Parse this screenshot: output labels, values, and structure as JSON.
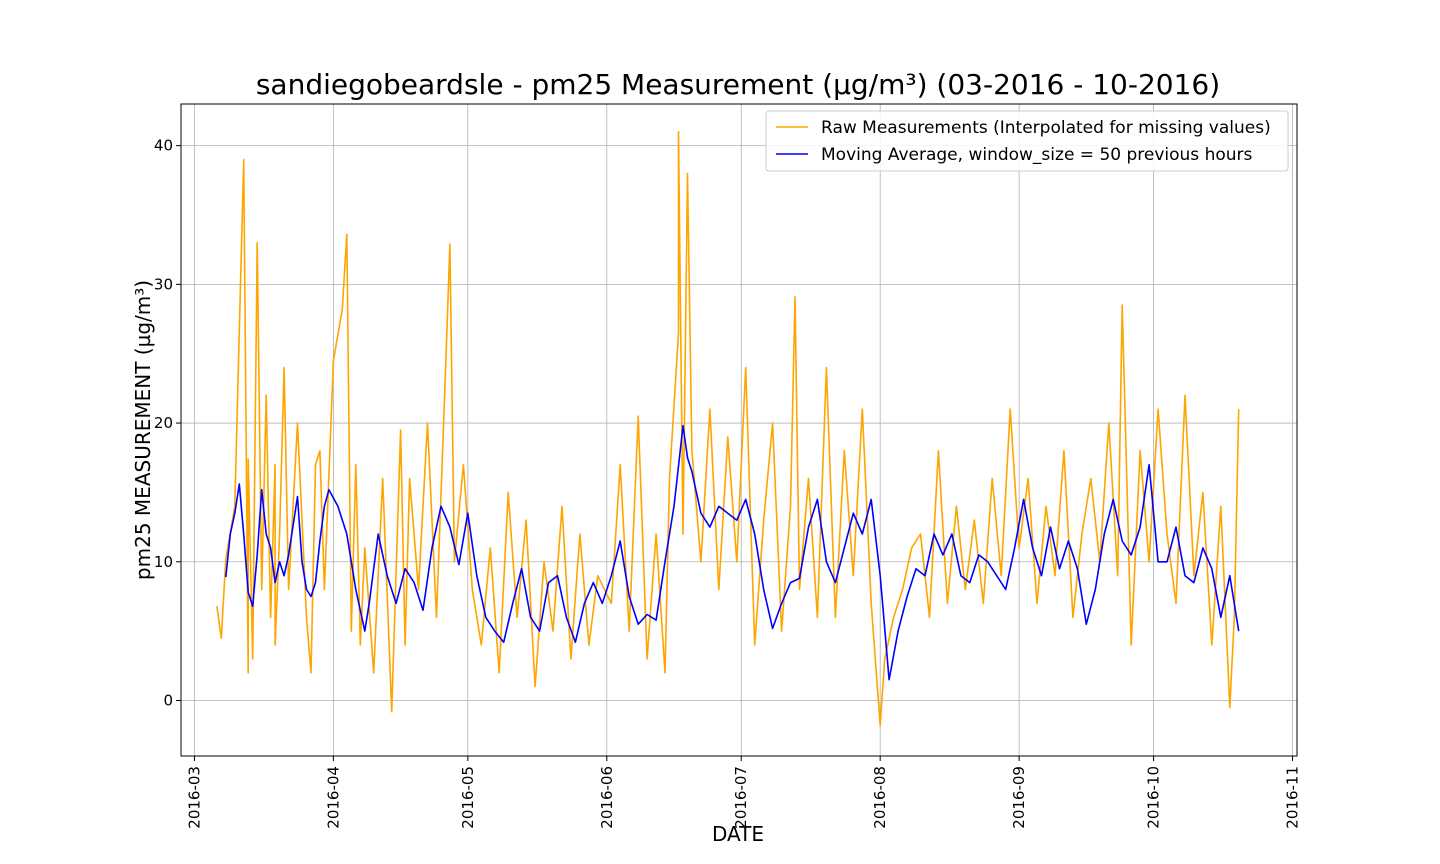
{
  "chart_data": {
    "type": "line",
    "title": "sandiegobeardsle - pm25 Measurement (µg/m³) (03-2016 - 10-2016)",
    "xlabel": "DATE",
    "ylabel": "pm25 MEASUREMENT (µg/m³)",
    "xlim": [
      "2016-02-27",
      "2016-11-02"
    ],
    "ylim": [
      -4,
      43
    ],
    "x_tick_labels": [
      "2016-03",
      "2016-04",
      "2016-05",
      "2016-06",
      "2016-07",
      "2016-08",
      "2016-09",
      "2016-10",
      "2016-11"
    ],
    "x_ticks": [
      "2016-03-01",
      "2016-04-01",
      "2016-05-01",
      "2016-06-01",
      "2016-07-01",
      "2016-08-01",
      "2016-09-01",
      "2016-10-01",
      "2016-11-01"
    ],
    "y_ticks": [
      0,
      10,
      20,
      30,
      40
    ],
    "grid": true,
    "legend_position": "top-right",
    "colors": {
      "raw": "#FFA500",
      "moving_average": "#0000FF"
    },
    "series": [
      {
        "name": "Raw Measurements (Interpolated for missing values)",
        "x": [
          "2016-03-06",
          "2016-03-07",
          "2016-03-08",
          "2016-03-10",
          "2016-03-12",
          "2016-03-13",
          "2016-03-13",
          "2016-03-14",
          "2016-03-15",
          "2016-03-16",
          "2016-03-17",
          "2016-03-18",
          "2016-03-19",
          "2016-03-19",
          "2016-03-20",
          "2016-03-21",
          "2016-03-22",
          "2016-03-24",
          "2016-03-26",
          "2016-03-27",
          "2016-03-28",
          "2016-03-29",
          "2016-03-30",
          "2016-04-01",
          "2016-04-03",
          "2016-04-04",
          "2016-04-05",
          "2016-04-06",
          "2016-04-07",
          "2016-04-08",
          "2016-04-10",
          "2016-04-12",
          "2016-04-14",
          "2016-04-16",
          "2016-04-17",
          "2016-04-18",
          "2016-04-20",
          "2016-04-22",
          "2016-04-24",
          "2016-04-26",
          "2016-04-27",
          "2016-04-28",
          "2016-04-30",
          "2016-05-02",
          "2016-05-04",
          "2016-05-06",
          "2016-05-08",
          "2016-05-10",
          "2016-05-12",
          "2016-05-14",
          "2016-05-16",
          "2016-05-18",
          "2016-05-20",
          "2016-05-22",
          "2016-05-24",
          "2016-05-26",
          "2016-05-28",
          "2016-05-30",
          "2016-06-02",
          "2016-06-04",
          "2016-06-06",
          "2016-06-08",
          "2016-06-10",
          "2016-06-12",
          "2016-06-14",
          "2016-06-15",
          "2016-06-17",
          "2016-06-17",
          "2016-06-18",
          "2016-06-19",
          "2016-06-20",
          "2016-06-22",
          "2016-06-24",
          "2016-06-26",
          "2016-06-28",
          "2016-06-30",
          "2016-07-02",
          "2016-07-04",
          "2016-07-06",
          "2016-07-08",
          "2016-07-10",
          "2016-07-12",
          "2016-07-13",
          "2016-07-14",
          "2016-07-16",
          "2016-07-18",
          "2016-07-20",
          "2016-07-22",
          "2016-07-24",
          "2016-07-26",
          "2016-07-28",
          "2016-07-30",
          "2016-08-01",
          "2016-08-02",
          "2016-08-04",
          "2016-08-06",
          "2016-08-08",
          "2016-08-10",
          "2016-08-12",
          "2016-08-14",
          "2016-08-16",
          "2016-08-18",
          "2016-08-20",
          "2016-08-22",
          "2016-08-24",
          "2016-08-26",
          "2016-08-28",
          "2016-08-30",
          "2016-09-01",
          "2016-09-03",
          "2016-09-05",
          "2016-09-07",
          "2016-09-09",
          "2016-09-11",
          "2016-09-13",
          "2016-09-15",
          "2016-09-17",
          "2016-09-19",
          "2016-09-21",
          "2016-09-23",
          "2016-09-24",
          "2016-09-26",
          "2016-09-28",
          "2016-09-30",
          "2016-10-02",
          "2016-10-04",
          "2016-10-06",
          "2016-10-08",
          "2016-10-10",
          "2016-10-12",
          "2016-10-14",
          "2016-10-16",
          "2016-10-18",
          "2016-10-19",
          "2016-10-20"
        ],
        "y": [
          6.8,
          4.5,
          10.2,
          14.0,
          39.0,
          2.0,
          17.4,
          3.0,
          33.0,
          8.0,
          22.0,
          6.0,
          17.0,
          4.0,
          12.0,
          24.0,
          8.0,
          20.0,
          6.0,
          2.0,
          17.0,
          18.0,
          8.0,
          24.5,
          28.2,
          33.6,
          5.0,
          17.0,
          4.0,
          11.0,
          2.0,
          16.0,
          -0.8,
          19.5,
          4.0,
          16.0,
          8.0,
          20.0,
          6.0,
          23.5,
          32.9,
          10.0,
          17.0,
          8.0,
          4.0,
          11.0,
          2.0,
          15.0,
          6.0,
          13.0,
          1.0,
          10.0,
          5.0,
          14.0,
          3.0,
          12.0,
          4.0,
          9.0,
          7.0,
          17.0,
          5.0,
          20.5,
          3.0,
          12.0,
          2.0,
          16.0,
          26.5,
          41.0,
          12.0,
          38.0,
          18.0,
          10.0,
          21.0,
          8.0,
          19.0,
          10.0,
          24.0,
          4.0,
          13.0,
          20.0,
          5.0,
          14.0,
          29.1,
          8.0,
          16.0,
          6.0,
          24.0,
          6.0,
          18.0,
          9.0,
          21.0,
          7.0,
          -1.8,
          3.0,
          6.0,
          8.0,
          11.0,
          12.0,
          6.0,
          18.0,
          7.0,
          14.0,
          8.0,
          13.0,
          7.0,
          16.0,
          9.0,
          21.0,
          11.0,
          16.0,
          7.0,
          14.0,
          9.0,
          18.0,
          6.0,
          12.0,
          16.0,
          10.0,
          20.0,
          9.0,
          28.5,
          4.0,
          18.0,
          10.0,
          21.0,
          12.0,
          7.0,
          22.0,
          9.0,
          15.0,
          4.0,
          14.0,
          -0.5,
          6.0,
          21.0
        ]
      },
      {
        "name": "Moving Average, window_size = 50 previous hours",
        "x": [
          "2016-03-08",
          "2016-03-09",
          "2016-03-10",
          "2016-03-11",
          "2016-03-12",
          "2016-03-13",
          "2016-03-14",
          "2016-03-15",
          "2016-03-16",
          "2016-03-17",
          "2016-03-18",
          "2016-03-19",
          "2016-03-20",
          "2016-03-21",
          "2016-03-22",
          "2016-03-24",
          "2016-03-25",
          "2016-03-26",
          "2016-03-27",
          "2016-03-28",
          "2016-03-29",
          "2016-03-30",
          "2016-03-31",
          "2016-04-02",
          "2016-04-04",
          "2016-04-06",
          "2016-04-07",
          "2016-04-08",
          "2016-04-09",
          "2016-04-11",
          "2016-04-13",
          "2016-04-15",
          "2016-04-17",
          "2016-04-19",
          "2016-04-21",
          "2016-04-23",
          "2016-04-25",
          "2016-04-27",
          "2016-04-29",
          "2016-05-01",
          "2016-05-03",
          "2016-05-05",
          "2016-05-07",
          "2016-05-09",
          "2016-05-11",
          "2016-05-13",
          "2016-05-15",
          "2016-05-17",
          "2016-05-19",
          "2016-05-21",
          "2016-05-23",
          "2016-05-25",
          "2016-05-27",
          "2016-05-29",
          "2016-05-31",
          "2016-06-02",
          "2016-06-04",
          "2016-06-06",
          "2016-06-08",
          "2016-06-10",
          "2016-06-12",
          "2016-06-14",
          "2016-06-16",
          "2016-06-18",
          "2016-06-19",
          "2016-06-20",
          "2016-06-22",
          "2016-06-24",
          "2016-06-26",
          "2016-06-28",
          "2016-06-30",
          "2016-07-02",
          "2016-07-04",
          "2016-07-06",
          "2016-07-08",
          "2016-07-10",
          "2016-07-12",
          "2016-07-14",
          "2016-07-16",
          "2016-07-18",
          "2016-07-20",
          "2016-07-22",
          "2016-07-24",
          "2016-07-26",
          "2016-07-28",
          "2016-07-30",
          "2016-08-01",
          "2016-08-03",
          "2016-08-05",
          "2016-08-07",
          "2016-08-09",
          "2016-08-11",
          "2016-08-13",
          "2016-08-15",
          "2016-08-17",
          "2016-08-19",
          "2016-08-21",
          "2016-08-23",
          "2016-08-25",
          "2016-08-27",
          "2016-08-29",
          "2016-08-31",
          "2016-09-02",
          "2016-09-04",
          "2016-09-06",
          "2016-09-08",
          "2016-09-10",
          "2016-09-12",
          "2016-09-14",
          "2016-09-16",
          "2016-09-18",
          "2016-09-20",
          "2016-09-22",
          "2016-09-24",
          "2016-09-26",
          "2016-09-28",
          "2016-09-30",
          "2016-10-02",
          "2016-10-04",
          "2016-10-06",
          "2016-10-08",
          "2016-10-10",
          "2016-10-12",
          "2016-10-14",
          "2016-10-16",
          "2016-10-18",
          "2016-10-20"
        ],
        "y": [
          8.9,
          12.0,
          13.5,
          15.6,
          12.0,
          7.8,
          6.8,
          10.5,
          15.2,
          12.0,
          11.0,
          8.5,
          10.0,
          9.0,
          10.5,
          14.7,
          10.0,
          8.0,
          7.5,
          8.5,
          11.5,
          14.0,
          15.2,
          14.0,
          12.0,
          8.0,
          6.5,
          5.0,
          7.0,
          12.0,
          9.0,
          7.0,
          9.5,
          8.5,
          6.5,
          11.0,
          14.0,
          12.5,
          9.8,
          13.5,
          9.0,
          6.0,
          5.0,
          4.2,
          7.0,
          9.5,
          6.0,
          5.0,
          8.5,
          9.0,
          6.0,
          4.2,
          7.0,
          8.5,
          7.0,
          9.0,
          11.5,
          7.5,
          5.5,
          6.2,
          5.8,
          10.0,
          14.0,
          19.8,
          17.5,
          16.5,
          13.5,
          12.5,
          14.0,
          13.5,
          13.0,
          14.5,
          12.0,
          8.0,
          5.2,
          7.0,
          8.5,
          8.8,
          12.5,
          14.5,
          10.0,
          8.5,
          11.0,
          13.5,
          12.0,
          14.5,
          9.0,
          1.5,
          5.0,
          7.5,
          9.5,
          9.0,
          12.0,
          10.5,
          12.0,
          9.0,
          8.5,
          10.5,
          10.0,
          9.0,
          8.0,
          11.0,
          14.5,
          11.0,
          9.0,
          12.5,
          9.5,
          11.5,
          9.5,
          5.5,
          8.0,
          12.0,
          14.5,
          11.5,
          10.5,
          12.5,
          17.0,
          10.0,
          10.0,
          12.5,
          9.0,
          8.5,
          11.0,
          9.5,
          6.0,
          9.0,
          5.0
        ]
      }
    ]
  }
}
